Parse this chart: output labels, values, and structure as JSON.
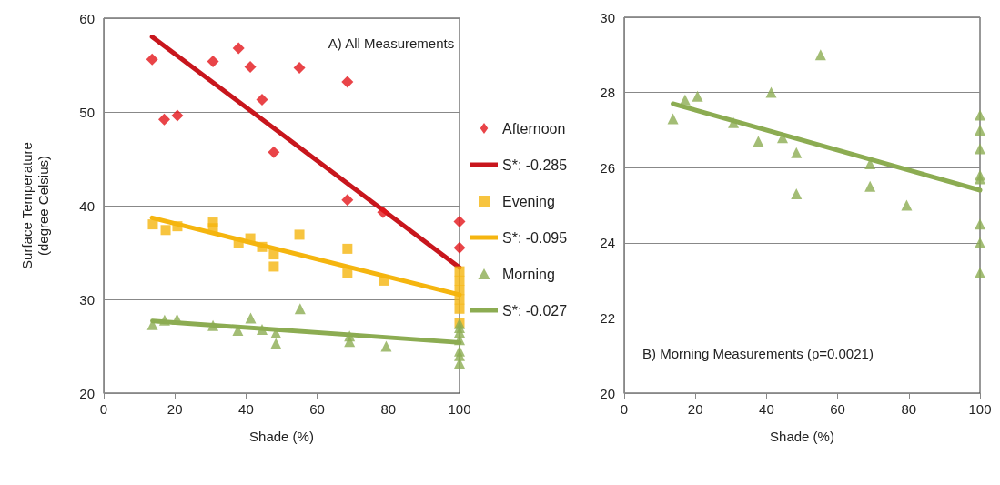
{
  "chart_data": [
    {
      "type": "scatter",
      "xlabel": "Shade (%)",
      "ylabel": "Surface Temperature\n(degree Celsius)",
      "annotations": [
        "A) All Measurements"
      ],
      "xlim": [
        0,
        100
      ],
      "xticks": [
        0,
        20,
        40,
        60,
        80,
        100
      ],
      "ylim": [
        20,
        60
      ],
      "yticks": [
        20,
        30,
        40,
        50,
        60
      ],
      "grid": "y",
      "legend": "right",
      "series": [
        {
          "name": "Afternoon",
          "type": "scatter",
          "marker": "diamond",
          "color": "#e3151a",
          "x": [
            13.6,
            17,
            20.7,
            30.7,
            37.9,
            41.2,
            44.5,
            47.8,
            55,
            68.5,
            68.5,
            78.5,
            100,
            100
          ],
          "values": [
            55.6,
            49.2,
            49.6,
            55.4,
            56.8,
            54.8,
            51.3,
            45.7,
            54.7,
            53.2,
            40.6,
            39.3,
            38.3,
            35.5
          ]
        },
        {
          "name": "S*: -0.285",
          "type": "line",
          "marker": "none",
          "line_style": "solid",
          "color": "#c8161d",
          "x": [
            13.6,
            100
          ],
          "values": [
            58,
            33.4
          ]
        },
        {
          "name": "Evening",
          "type": "scatter",
          "marker": "square",
          "color": "#f5b50f",
          "x": [
            13.8,
            17.4,
            20.7,
            30.7,
            30.7,
            37.9,
            41.2,
            44.5,
            47.8,
            47.8,
            55,
            68.5,
            68.5,
            78.7,
            100,
            100,
            100,
            100,
            100,
            100
          ],
          "values": [
            38,
            37.4,
            37.8,
            38.2,
            37.6,
            36,
            36.5,
            35.6,
            34.8,
            33.5,
            36.9,
            35.4,
            32.8,
            32,
            33,
            32,
            31,
            30,
            29,
            27.5
          ]
        },
        {
          "name": "S*: -0.095",
          "type": "line",
          "marker": "none",
          "line_style": "solid",
          "color": "#f5b50f",
          "x": [
            13.6,
            100
          ],
          "values": [
            38.7,
            30.5
          ]
        },
        {
          "name": "Morning",
          "type": "scatter",
          "marker": "triangle",
          "color": "#8cac52",
          "x": [
            13.7,
            17.1,
            20.6,
            30.7,
            37.7,
            41.3,
            44.5,
            48.4,
            48.4,
            55.2,
            69.1,
            69.1,
            79.4,
            100,
            100,
            100,
            100,
            100,
            100,
            100
          ],
          "values": [
            27.3,
            27.8,
            27.9,
            27.2,
            26.7,
            28,
            26.8,
            26.4,
            25.3,
            29,
            26.1,
            25.5,
            25,
            27.4,
            27,
            26.5,
            25.7,
            24.5,
            24,
            23.2
          ]
        },
        {
          "name": "S*: -0.027",
          "type": "line",
          "marker": "none",
          "line_style": "solid",
          "color": "#8cac52",
          "x": [
            13.7,
            100
          ],
          "values": [
            27.7,
            25.4
          ]
        }
      ]
    },
    {
      "type": "scatter",
      "xlabel": "Shade (%)",
      "annotations": [
        "B) Morning Measurements (p=0.0021)"
      ],
      "xlim": [
        0,
        100
      ],
      "xticks": [
        0,
        20,
        40,
        60,
        80,
        100
      ],
      "ylim": [
        20,
        30
      ],
      "yticks": [
        20,
        22,
        24,
        26,
        28,
        30
      ],
      "grid": "y",
      "legend": false,
      "series": [
        {
          "type": "scatter",
          "marker": "triangle",
          "color": "#8cac52",
          "x": [
            13.7,
            17.1,
            20.6,
            30.7,
            37.7,
            41.3,
            44.5,
            48.4,
            48.4,
            55.2,
            69.1,
            69.1,
            79.4,
            100,
            100,
            100,
            100,
            100,
            100,
            100,
            100
          ],
          "values": [
            27.3,
            27.8,
            27.9,
            27.2,
            26.7,
            28,
            26.8,
            26.4,
            25.3,
            29,
            26.1,
            25.5,
            25,
            27.4,
            27,
            26.5,
            25.8,
            25.7,
            24.5,
            24,
            23.2
          ]
        },
        {
          "type": "line",
          "marker": "none",
          "line_style": "solid",
          "color": "#8cac52",
          "x": [
            13.7,
            100
          ],
          "values": [
            27.7,
            25.4
          ]
        }
      ]
    }
  ]
}
